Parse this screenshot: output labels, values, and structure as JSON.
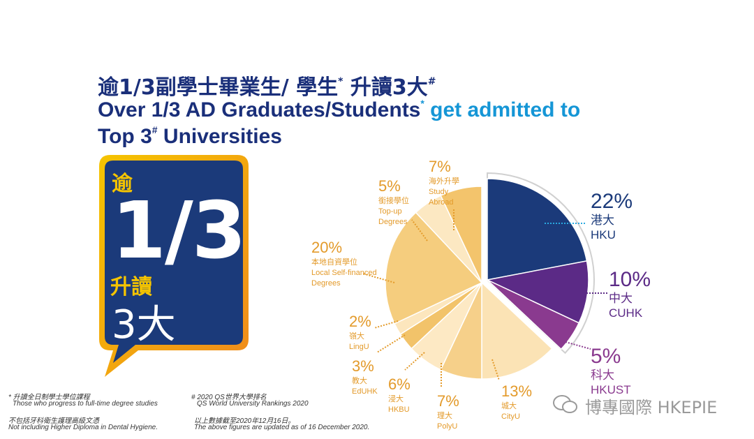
{
  "title": {
    "line1_main": "逾1/3副學士畢業生/ 學生",
    "line1_star": "*",
    "line1_mid": " 升讀3大",
    "line1_hash": "#",
    "line2_main": "Over 1/3 AD Graduates/Students",
    "line2_star": "*",
    "line2_hl": " get admitted to",
    "line3_main": "Top 3",
    "line3_hash": "#",
    "line3_end": " Universities"
  },
  "bubble": {
    "l1": "逾",
    "l2": "1/3",
    "l3": "升讀",
    "l4": "3大"
  },
  "colors": {
    "navy": "#1b3a7a",
    "purple": "#5b2a86",
    "magenta": "#8a3a8f",
    "gold": "#f0b54a",
    "border": "#f5c400"
  },
  "chart_data": {
    "type": "pie",
    "slices": [
      {
        "pct": "22%",
        "value": 22,
        "zh": "港大",
        "en": [
          "HKU"
        ],
        "color": "#1b3a7a",
        "exploded": true
      },
      {
        "pct": "10%",
        "value": 10,
        "zh": "中大",
        "en": [
          "CUHK"
        ],
        "color": "#5b2a86",
        "exploded": true
      },
      {
        "pct": "5%",
        "value": 5,
        "zh": "科大",
        "en": [
          "HKUST"
        ],
        "color": "#8a3a8f",
        "exploded": true
      },
      {
        "pct": "13%",
        "value": 13,
        "zh": "城大",
        "en": [
          "CityU"
        ],
        "color": "#fbe3b5",
        "exploded": false
      },
      {
        "pct": "7%",
        "value": 7,
        "zh": "理大",
        "en": [
          "PolyU"
        ],
        "color": "#f6d08a",
        "exploded": false
      },
      {
        "pct": "6%",
        "value": 6,
        "zh": "浸大",
        "en": [
          "HKBU"
        ],
        "color": "#fde9c4",
        "exploded": false
      },
      {
        "pct": "3%",
        "value": 3,
        "zh": "教大",
        "en": [
          "EdUHK"
        ],
        "color": "#f2c36a",
        "exploded": false
      },
      {
        "pct": "2%",
        "value": 2,
        "zh": "嶺大",
        "en": [
          "LingU"
        ],
        "color": "#fce6bd",
        "exploded": false
      },
      {
        "pct": "20%",
        "value": 20,
        "zh": "本地自資學位",
        "en": [
          "Local Self-financed",
          "Degrees"
        ],
        "color": "#f5cd7e",
        "exploded": false
      },
      {
        "pct": "5%",
        "value": 5,
        "zh": "銜接學位",
        "en": [
          "Top-up",
          "Degrees"
        ],
        "color": "#fce8c2",
        "exploded": false
      },
      {
        "pct": "7%",
        "value": 7,
        "zh": "海外升學",
        "en": [
          "Study",
          "Abroad"
        ],
        "color": "#f3c46c",
        "exploded": false
      }
    ]
  },
  "notes": {
    "n1a": "* 升讀全日制學士學位課程",
    "n1b": "Those who progress to full-time degree studies",
    "n2a": "# 2020 QS世界大學排名",
    "n2b": "QS World University Rankings 2020",
    "n3a": "不包括牙科衛生護理高級文憑",
    "n3b": "Not including Higher Diploma in Dental Hygiene.",
    "n4a": "以上數據截至2020年12月16日。",
    "n4b": "The above figures are updated as of 16 December 2020."
  },
  "watermark": "博專國際 HKEPIE"
}
